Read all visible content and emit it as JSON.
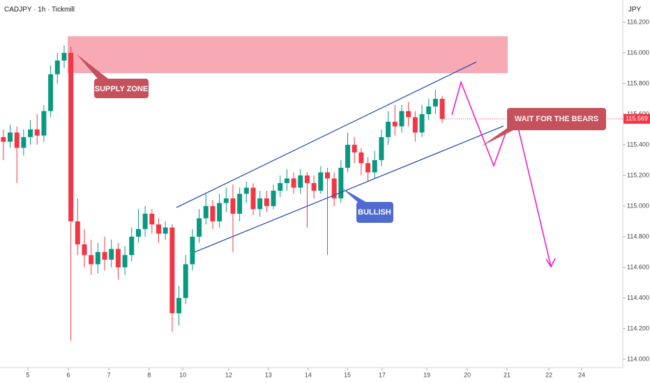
{
  "header": {
    "symbol": "CADJPY · 1h · Tickmill",
    "currency": "JPY"
  },
  "annotations": {
    "supply": "SUPPLY ZONE",
    "bullish": "BULLISH",
    "bears": "WAIT FOR THE BEARS"
  },
  "chart_data": {
    "type": "candlestick",
    "up_color": "#089981",
    "down_color": "#f23645",
    "xlim": [
      0,
      369
    ],
    "xticks": [
      {
        "value": 16.5,
        "label": "5"
      },
      {
        "value": 40.5,
        "label": "6"
      },
      {
        "value": 64.5,
        "label": "7"
      },
      {
        "value": 88.4,
        "label": "8"
      },
      {
        "value": 108.3,
        "label": "10"
      },
      {
        "value": 135.5,
        "label": "12"
      },
      {
        "value": 159,
        "label": "13"
      },
      {
        "value": 182.6,
        "label": "14"
      },
      {
        "value": 205.8,
        "label": "15"
      },
      {
        "value": 226.4,
        "label": "17"
      },
      {
        "value": 252.9,
        "label": "19"
      },
      {
        "value": 276.9,
        "label": "20"
      },
      {
        "value": 300.4,
        "label": "21"
      },
      {
        "value": 325.2,
        "label": "22"
      },
      {
        "value": 344.6,
        "label": "24"
      }
    ],
    "ylim": [
      113.945,
      116.345
    ],
    "yticks": [
      {
        "value": 114,
        "label": "114.000"
      },
      {
        "value": 114.2,
        "label": "114.200"
      },
      {
        "value": 114.4,
        "label": "114.400"
      },
      {
        "value": 114.6,
        "label": "114.600"
      },
      {
        "value": 114.8,
        "label": "114.800"
      },
      {
        "value": 115,
        "label": "115.000"
      },
      {
        "value": 115.2,
        "label": "115.200"
      },
      {
        "value": 115.4,
        "label": "115.400"
      },
      {
        "value": 115.6,
        "label": "115.600"
      },
      {
        "value": 115.8,
        "label": "115.800"
      },
      {
        "value": 116,
        "label": "116.000"
      },
      {
        "value": 116.2,
        "label": "116.200"
      }
    ],
    "x": [
      2,
      6,
      10,
      14,
      18,
      22,
      26,
      30,
      34,
      38,
      42,
      46,
      50,
      54,
      58,
      62,
      66,
      70,
      74,
      78,
      82,
      86,
      90,
      94,
      98,
      102,
      106,
      110,
      114,
      118,
      122,
      126,
      130,
      134,
      138,
      142,
      146,
      150,
      154,
      158,
      162,
      166,
      170,
      174,
      178,
      182,
      186,
      190,
      194,
      198,
      202,
      206,
      210,
      214,
      218,
      222,
      226,
      230,
      234,
      238,
      242,
      246,
      250,
      254,
      258,
      262
    ],
    "open": [
      115.45,
      115.42,
      115.48,
      115.38,
      115.45,
      115.5,
      115.46,
      115.62,
      115.86,
      115.95,
      116.0,
      114.9,
      114.75,
      114.68,
      114.62,
      114.7,
      114.65,
      114.72,
      114.6,
      114.68,
      114.8,
      114.85,
      114.95,
      114.88,
      114.82,
      114.86,
      114.3,
      114.4,
      114.62,
      114.8,
      114.92,
      115.0,
      114.9,
      115.02,
      115.05,
      114.95,
      115.08,
      115.12,
      114.98,
      115.05,
      115.0,
      115.1,
      115.15,
      115.18,
      115.12,
      115.2,
      115.15,
      115.1,
      115.22,
      115.18,
      115.05,
      115.25,
      115.4,
      115.35,
      115.28,
      115.22,
      115.3,
      115.45,
      115.55,
      115.52,
      115.62,
      115.58,
      115.48,
      115.6,
      115.65,
      115.7
    ],
    "high": [
      115.5,
      115.53,
      115.52,
      115.5,
      115.56,
      115.6,
      115.66,
      115.92,
      116.0,
      116.05,
      116.04,
      115.05,
      114.85,
      114.78,
      114.76,
      114.8,
      114.78,
      114.76,
      114.74,
      114.86,
      114.98,
      115.0,
      114.98,
      114.92,
      114.9,
      114.88,
      114.48,
      114.68,
      114.85,
      114.98,
      115.08,
      115.04,
      115.08,
      115.12,
      115.14,
      115.12,
      115.16,
      115.15,
      115.1,
      115.1,
      115.14,
      115.2,
      115.24,
      115.22,
      115.24,
      115.22,
      115.2,
      115.26,
      115.25,
      115.22,
      115.3,
      115.48,
      115.45,
      115.38,
      115.32,
      115.36,
      115.5,
      115.62,
      115.66,
      115.66,
      115.68,
      115.62,
      115.66,
      115.7,
      115.76,
      115.72
    ],
    "low": [
      115.3,
      115.38,
      115.15,
      115.33,
      115.4,
      115.4,
      115.42,
      115.58,
      115.8,
      115.9,
      114.12,
      114.68,
      114.6,
      114.55,
      114.56,
      114.58,
      114.6,
      114.52,
      114.55,
      114.64,
      114.76,
      114.8,
      114.82,
      114.76,
      114.78,
      114.18,
      114.22,
      114.36,
      114.58,
      114.76,
      114.88,
      114.85,
      114.86,
      114.96,
      114.7,
      114.9,
      115.02,
      114.94,
      114.93,
      114.96,
      114.98,
      115.06,
      115.1,
      115.08,
      115.08,
      114.86,
      115.05,
      115.08,
      114.68,
      115.0,
      115.02,
      115.22,
      115.28,
      115.2,
      115.16,
      115.18,
      115.26,
      115.4,
      115.46,
      115.48,
      115.52,
      115.42,
      115.45,
      115.56,
      115.6,
      115.54
    ],
    "close": [
      115.42,
      115.48,
      115.38,
      115.45,
      115.5,
      115.46,
      115.62,
      115.86,
      115.95,
      116.0,
      114.9,
      114.75,
      114.68,
      114.62,
      114.7,
      114.65,
      114.72,
      114.6,
      114.68,
      114.8,
      114.85,
      114.95,
      114.88,
      114.82,
      114.86,
      114.3,
      114.4,
      114.62,
      114.8,
      114.92,
      115.0,
      114.9,
      115.02,
      115.05,
      114.95,
      115.08,
      115.12,
      114.98,
      115.05,
      115.0,
      115.1,
      115.15,
      115.18,
      115.12,
      115.2,
      115.15,
      115.1,
      115.22,
      115.18,
      115.05,
      115.25,
      115.4,
      115.35,
      115.28,
      115.22,
      115.3,
      115.45,
      115.55,
      115.52,
      115.62,
      115.58,
      115.48,
      115.6,
      115.65,
      115.7,
      115.569
    ]
  }
}
